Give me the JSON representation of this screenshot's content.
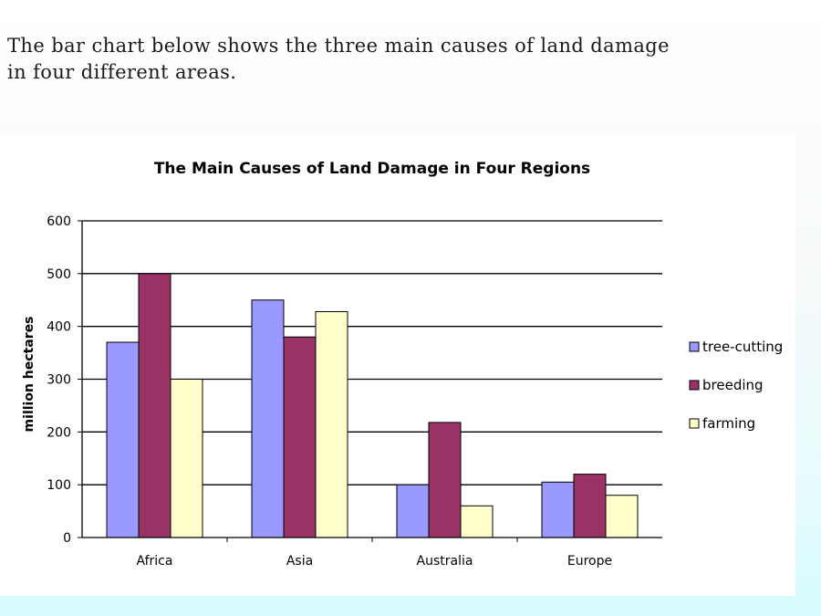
{
  "intro": {
    "line1": "The bar chart below shows the three main causes of land damage",
    "line2": "in four different areas."
  },
  "colors": {
    "tree_cutting": "#9999ff",
    "breeding": "#993366",
    "farming": "#ffffcc",
    "bar_stroke": "#000000"
  },
  "chart_data": {
    "type": "bar",
    "title": "The Main Causes of Land Damage in Four Regions",
    "xlabel": "",
    "ylabel": "million hectares",
    "ylim": [
      0,
      600
    ],
    "yticks": [
      0,
      100,
      200,
      300,
      400,
      500,
      600
    ],
    "grid": "horizontal",
    "legend_position": "right",
    "categories": [
      "Africa",
      "Asia",
      "Australia",
      "Europe"
    ],
    "series": [
      {
        "name": "tree-cutting",
        "color": "#9999ff",
        "values": [
          370,
          450,
          100,
          105
        ]
      },
      {
        "name": "breeding",
        "color": "#993366",
        "values": [
          500,
          380,
          218,
          120
        ]
      },
      {
        "name": "farming",
        "color": "#ffffcc",
        "values": [
          300,
          428,
          60,
          80
        ]
      }
    ]
  }
}
